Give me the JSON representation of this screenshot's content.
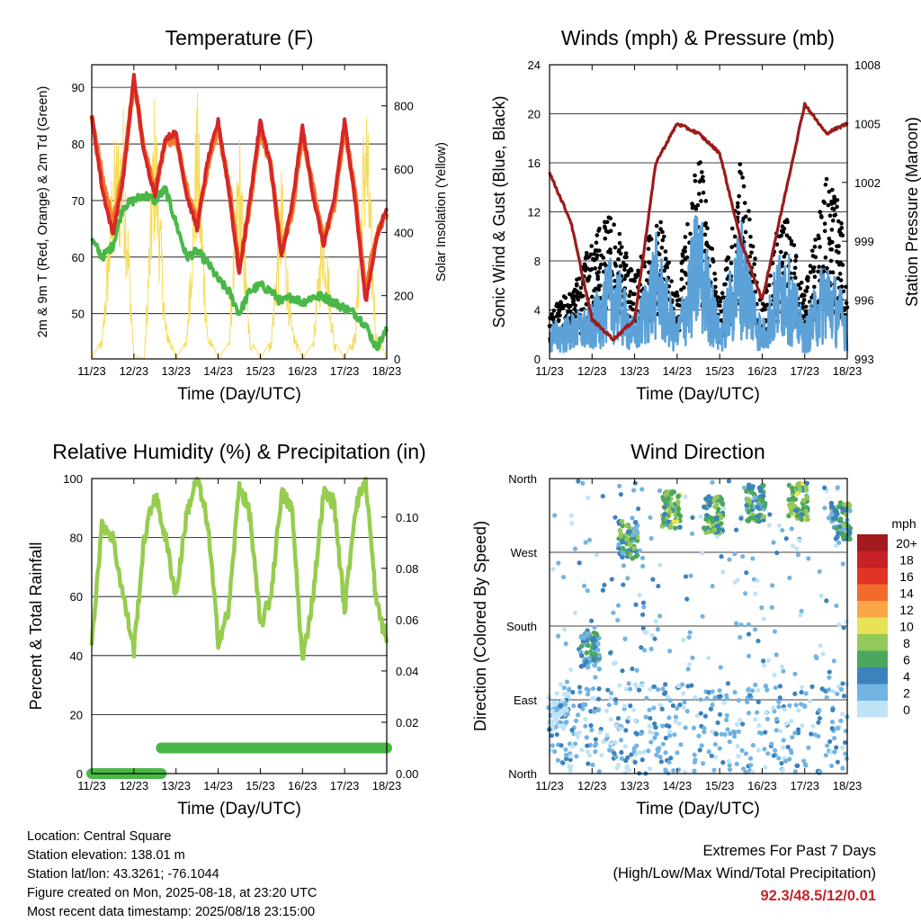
{
  "colors": {
    "t2m": "#d62728",
    "t9m": "#f47a2a",
    "td": "#4ab848",
    "solar": "#f5dc5a",
    "wind": "#5ca2d8",
    "gust": "#000000",
    "pressure": "#9b1c1c",
    "rh": "#96cc4f",
    "precip": "#4ab848"
  },
  "x_ticks": [
    "11/23",
    "12/23",
    "13/23",
    "14/23",
    "15/23",
    "16/23",
    "17/23",
    "18/23"
  ],
  "x_label": "Time (Day/UTC)",
  "chart_data": [
    {
      "type": "line",
      "title": "Temperature (F)",
      "xlabel": "Time (Day/UTC)",
      "ylabel": "2m & 9m T (Red, Orange) & 2m Td (Green)",
      "ylabel_right": "Solar Insolation (Yellow)",
      "ylim": [
        42,
        94
      ],
      "y_ticks": [
        50,
        60,
        70,
        80,
        90
      ],
      "ylim_right": [
        0,
        930
      ],
      "y_ticks_right": [
        0,
        200,
        400,
        600,
        800
      ],
      "grid": true,
      "x": [
        0,
        0.25,
        0.5,
        0.75,
        1,
        1.25,
        1.5,
        1.75,
        2,
        2.25,
        2.5,
        2.75,
        3,
        3.25,
        3.5,
        3.75,
        4,
        4.25,
        4.5,
        4.75,
        5,
        5.25,
        5.5,
        5.75,
        6,
        6.25,
        6.5,
        6.75,
        7
      ],
      "series": [
        {
          "values": [
            85,
            72,
            64,
            74,
            92,
            78,
            71,
            81,
            82,
            71,
            65,
            77,
            84,
            72,
            57,
            70,
            84,
            76,
            60,
            69,
            83,
            71,
            62,
            70,
            84,
            70,
            52,
            63,
            69
          ]
        },
        {
          "values": [
            85,
            74,
            66,
            75,
            91,
            79,
            72,
            80,
            81,
            72,
            66,
            76,
            83,
            73,
            58,
            69,
            83,
            76,
            61,
            68,
            82,
            72,
            63,
            69,
            83,
            71,
            54,
            64,
            68
          ]
        },
        {
          "values": [
            63,
            60,
            62,
            69,
            70,
            71,
            70,
            72,
            66,
            60,
            61,
            59,
            56,
            54,
            50,
            54,
            55,
            54,
            52,
            53,
            52,
            53,
            53,
            52,
            51,
            50,
            48,
            44,
            47
          ]
        },
        {
          "values": [
            0,
            70,
            680,
            820,
            10,
            0,
            890,
            130,
            0,
            60,
            880,
            90,
            0,
            50,
            760,
            70,
            0,
            60,
            620,
            110,
            0,
            50,
            560,
            60,
            0,
            90,
            930,
            90,
            0
          ]
        }
      ]
    },
    {
      "type": "line",
      "title": "Winds (mph) & Pressure (mb)",
      "xlabel": "Time (Day/UTC)",
      "ylabel": "Sonic Wind & Gust (Blue, Black)",
      "ylabel_right": "Station Pressure (Maroon)",
      "ylim": [
        0,
        24
      ],
      "y_ticks": [
        0,
        4,
        8,
        12,
        16,
        20,
        24
      ],
      "ylim_right": [
        993,
        1008
      ],
      "y_ticks_right": [
        993,
        996,
        999,
        1002,
        1005,
        1008
      ],
      "grid": true,
      "x": [
        0,
        0.5,
        1,
        1.5,
        2,
        2.5,
        3,
        3.5,
        4,
        4.5,
        5,
        5.5,
        6,
        6.5,
        7
      ],
      "series": [
        {
          "values": [
            2,
            2.5,
            3,
            6,
            2,
            7,
            2,
            9,
            2,
            8,
            2,
            7,
            2,
            6,
            3
          ]
        },
        {
          "values": [
            4,
            5,
            9,
            11,
            6,
            12,
            5,
            16,
            4,
            15,
            4,
            12,
            5,
            14,
            10
          ]
        },
        {
          "values": [
            1002.5,
            1000,
            995,
            994,
            995,
            1003,
            1005,
            1004.5,
            1003.5,
            999,
            996,
            1001,
            1006,
            1004.5,
            1005
          ]
        }
      ]
    },
    {
      "type": "line",
      "title": "Relative Humidity (%) & Precipitation (in)",
      "xlabel": "Time (Day/UTC)",
      "ylabel": "Percent & Total Rainfall",
      "ylim": [
        0,
        100
      ],
      "y_ticks": [
        0,
        20,
        40,
        60,
        80,
        100
      ],
      "ylim_right": [
        0,
        0.115
      ],
      "y_ticks_right": [
        "0.00",
        "0.02",
        "0.04",
        "0.06",
        "0.08",
        "0.10"
      ],
      "grid": true,
      "x": [
        0,
        0.25,
        0.5,
        0.75,
        1,
        1.25,
        1.5,
        1.75,
        2,
        2.25,
        2.5,
        2.75,
        3,
        3.25,
        3.5,
        3.75,
        4,
        4.25,
        4.5,
        4.75,
        5,
        5.25,
        5.5,
        5.75,
        6,
        6.25,
        6.5,
        6.75,
        7
      ],
      "series": [
        {
          "values": [
            45,
            85,
            80,
            60,
            42,
            80,
            95,
            80,
            60,
            88,
            100,
            85,
            45,
            55,
            98,
            88,
            50,
            60,
            95,
            90,
            38,
            60,
            95,
            92,
            55,
            90,
            100,
            58,
            45
          ]
        },
        {
          "values": [
            0,
            0,
            0,
            0,
            0,
            0,
            0,
            0,
            0,
            0,
            0,
            0,
            0,
            0,
            0,
            0,
            0,
            0,
            0,
            0,
            0,
            0,
            0,
            0,
            0,
            0,
            0,
            0,
            0
          ]
        }
      ],
      "precip": {
        "x_step": 1.65,
        "before": 0.0,
        "after": 0.01
      }
    },
    {
      "type": "scatter",
      "title": "Wind Direction",
      "xlabel": "Time (Day/UTC)",
      "ylabel": "Direction (Colored By Speed)",
      "y_ticks": [
        "North",
        "East",
        "South",
        "West",
        "North"
      ],
      "ylim": [
        0,
        360
      ],
      "grid": true,
      "legend_title": "mph",
      "legend_labels": [
        "20+",
        "18",
        "16",
        "14",
        "12",
        "10",
        "8",
        "6",
        "4",
        "2",
        "0"
      ],
      "legend_colors": [
        "#a11b1f",
        "#c72127",
        "#e03426",
        "#f26b2c",
        "#f9a746",
        "#e9e254",
        "#93c95a",
        "#4ba75f",
        "#3c82bd",
        "#72b4e2",
        "#bfe3f5"
      ],
      "clusters": [
        {
          "x": 0.2,
          "dir": 75,
          "speed": 4
        },
        {
          "x": 0.95,
          "dir": 150,
          "speed": 7
        },
        {
          "x": 1.85,
          "dir": 285,
          "speed": 8
        },
        {
          "x": 2.85,
          "dir": 322,
          "speed": 10
        },
        {
          "x": 3.85,
          "dir": 316,
          "speed": 9
        },
        {
          "x": 4.85,
          "dir": 330,
          "speed": 8
        },
        {
          "x": 5.85,
          "dir": 332,
          "speed": 10
        },
        {
          "x": 6.85,
          "dir": 308,
          "speed": 8
        }
      ]
    }
  ],
  "info": {
    "location": "Location: Central Square",
    "elevation": "Station elevation: 138.01 m",
    "latlon": "Station lat/lon: 43.3261; -76.1044",
    "created": "Figure created on Mon, 2025-08-18, at 23:20 UTC",
    "recent": "Most recent data timestamp: 2025/08/18 23:15:00"
  },
  "extremes": {
    "title": "Extremes For Past 7 Days",
    "subtitle": "(High/Low/Max Wind/Total Precipitation)",
    "values": "92.3/48.5/12/0.01"
  }
}
